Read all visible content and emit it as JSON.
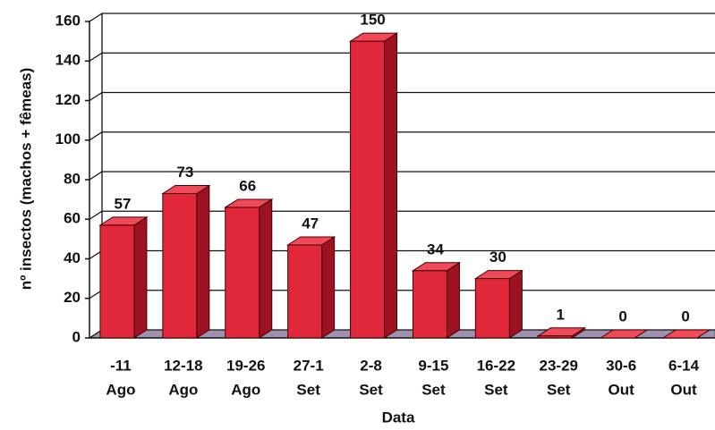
{
  "chart_data": {
    "type": "bar",
    "categories": [
      [
        "-11",
        "Ago"
      ],
      [
        "12-18",
        "Ago"
      ],
      [
        "19-26",
        "Ago"
      ],
      [
        "27-1",
        "Set"
      ],
      [
        "2-8",
        "Set"
      ],
      [
        "9-15",
        "Set"
      ],
      [
        "16-22",
        "Set"
      ],
      [
        "23-29",
        "Set"
      ],
      [
        "30-6",
        "Out"
      ],
      [
        "6-14",
        "Out"
      ]
    ],
    "values": [
      57,
      73,
      66,
      47,
      150,
      34,
      30,
      1,
      0,
      0
    ],
    "color": "#e0283a",
    "ylim": [
      0,
      160
    ],
    "yticks": [
      0,
      20,
      40,
      60,
      80,
      100,
      120,
      140,
      160
    ],
    "grid": true,
    "y_label": "nº insectos (machos + fêmeas)",
    "x_label": "Data"
  }
}
